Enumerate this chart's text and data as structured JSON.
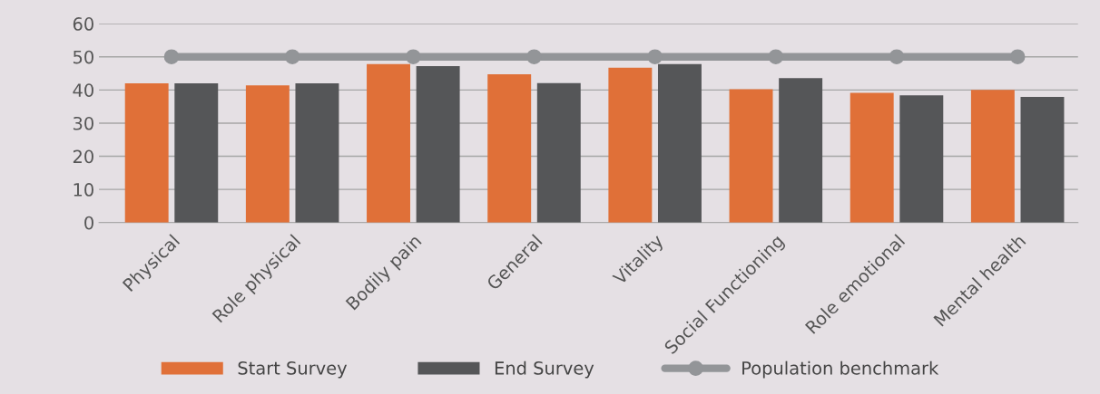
{
  "chart_data": {
    "type": "bar",
    "categories": [
      "Physical",
      "Role physical",
      "Bodily pain",
      "General",
      "Vitality",
      "Social Functioning",
      "Role emotional",
      "Mental health"
    ],
    "series": [
      {
        "name": "Start Survey",
        "color": "#e07038",
        "values": [
          42,
          41.4,
          47.8,
          44.7,
          46.7,
          40.2,
          39.1,
          40
        ]
      },
      {
        "name": "End Survey",
        "color": "#555658",
        "values": [
          42,
          42,
          47.2,
          42.1,
          47.8,
          43.6,
          38.4,
          37.9
        ]
      },
      {
        "name": "Population benchmark",
        "color": "#939598",
        "type": "line",
        "marker": "circle",
        "values": [
          50,
          50,
          50,
          50,
          50,
          50,
          50,
          50
        ]
      }
    ],
    "ylim": [
      0,
      60
    ],
    "yticks": [
      0,
      10,
      20,
      30,
      40,
      50,
      60
    ],
    "grid": "y",
    "legend": "bottom"
  }
}
